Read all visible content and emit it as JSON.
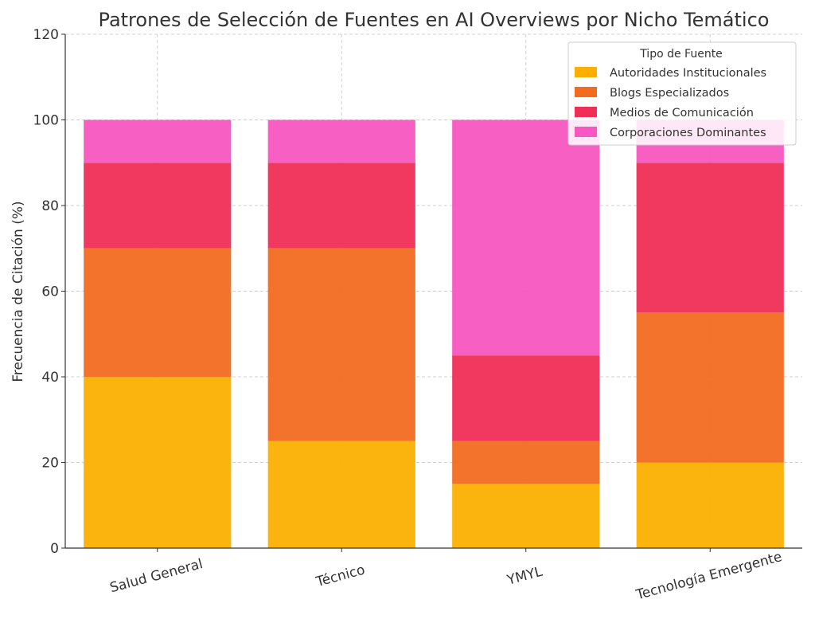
{
  "chart_data": {
    "type": "bar",
    "stacked": true,
    "title": "Patrones de Selección de Fuentes en AI Overviews por Nicho Temático",
    "xlabel": "",
    "ylabel": "Frecuencia de Citación (%)",
    "ylim": [
      0,
      120
    ],
    "yticks": [
      "0",
      "20",
      "40",
      "60",
      "80",
      "100",
      "120"
    ],
    "grid": true,
    "legend_position": "top-right",
    "legend_title": "Tipo de Fuente",
    "categories": [
      "Salud General",
      "Técnico",
      "YMYL",
      "Tecnología Emergente"
    ],
    "series": [
      {
        "name": "Autoridades Institucionales",
        "color": "#FBAF00",
        "values": [
          40,
          25,
          15,
          20
        ]
      },
      {
        "name": "Blogs Especializados",
        "color": "#F26B21",
        "values": [
          30,
          45,
          10,
          35
        ]
      },
      {
        "name": "Medios de Comunicación",
        "color": "#F02E57",
        "values": [
          20,
          20,
          20,
          35
        ]
      },
      {
        "name": "Corporaciones Dominantes",
        "color": "#F856C0",
        "values": [
          10,
          10,
          55,
          10
        ]
      }
    ]
  }
}
